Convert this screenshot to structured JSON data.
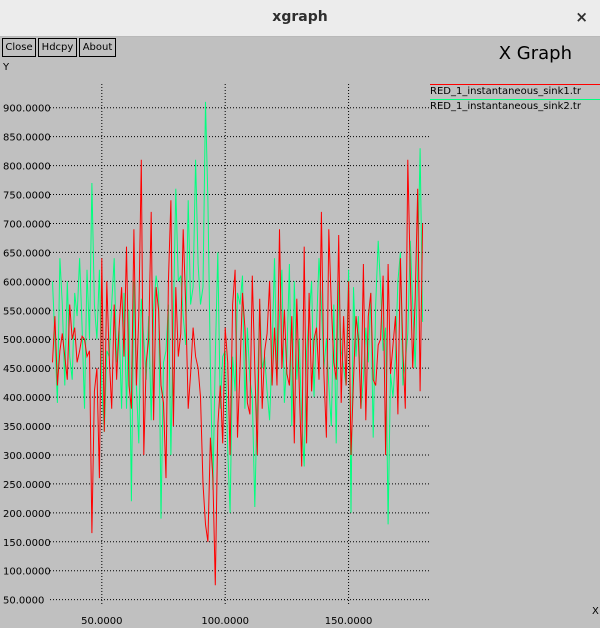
{
  "window": {
    "title": "xgraph",
    "close_icon": "×"
  },
  "toolbar": {
    "close_label": "Close",
    "hdcpy_label": "Hdcpy",
    "about_label": "About"
  },
  "graph_title": "X Graph",
  "colors": {
    "background": "#c0c0c0",
    "series1": "#ff0000",
    "series2": "#00ff7f",
    "grid": "#000000"
  },
  "chart_data": {
    "type": "line",
    "title": "X Graph",
    "xlabel": "X",
    "ylabel": "Y",
    "grid": true,
    "legend_position": "top-right",
    "xlim": [
      29,
      183
    ],
    "ylim": [
      39,
      941
    ],
    "x_ticks": [
      50,
      100,
      150
    ],
    "x_tick_labels": [
      "50.0000",
      "100.0000",
      "150.0000"
    ],
    "y_ticks": [
      50,
      100,
      150,
      200,
      250,
      300,
      350,
      400,
      450,
      500,
      550,
      600,
      650,
      700,
      750,
      800,
      850,
      900
    ],
    "y_tick_labels": [
      "50.0000",
      "100.0000",
      "150.0000",
      "200.0000",
      "250.0000",
      "300.0000",
      "350.0000",
      "400.0000",
      "450.0000",
      "500.0000",
      "550.0000",
      "600.0000",
      "650.0000",
      "700.0000",
      "750.0000",
      "800.0000",
      "850.0000",
      "900.0000"
    ],
    "series": [
      {
        "name": "RED_1_instantaneous_sink1.tr",
        "x": [
          30,
          31,
          32,
          33,
          34,
          35,
          36,
          37,
          38,
          39,
          40,
          41,
          42,
          43,
          44,
          45,
          46,
          47,
          48,
          49,
          50,
          51,
          52,
          53,
          54,
          55,
          56,
          57,
          58,
          59,
          60,
          61,
          62,
          63,
          64,
          65,
          66,
          67,
          68,
          69,
          70,
          71,
          72,
          73,
          74,
          75,
          76,
          77,
          78,
          79,
          80,
          81,
          82,
          83,
          84,
          85,
          86,
          87,
          88,
          89,
          90,
          91,
          92,
          93,
          94,
          95,
          96,
          97,
          98,
          99,
          100,
          101,
          102,
          103,
          104,
          105,
          106,
          107,
          108,
          109,
          110,
          111,
          112,
          113,
          114,
          115,
          116,
          117,
          118,
          119,
          120,
          121,
          122,
          123,
          124,
          125,
          126,
          127,
          128,
          129,
          130,
          131,
          132,
          133,
          134,
          135,
          136,
          137,
          138,
          139,
          140,
          141,
          142,
          143,
          144,
          145,
          146,
          147,
          148,
          149,
          150,
          151,
          152,
          153,
          154,
          155,
          156,
          157,
          158,
          159,
          160,
          161,
          162,
          163,
          164,
          165,
          166,
          167,
          168,
          169,
          170,
          171,
          172,
          173,
          174,
          175,
          176,
          177,
          178,
          179,
          180
        ],
        "y": [
          460,
          540,
          420,
          480,
          510,
          470,
          430,
          560,
          500,
          520,
          460,
          480,
          505,
          500,
          470,
          480,
          165,
          410,
          450,
          260,
          640,
          340,
          600,
          470,
          380,
          560,
          430,
          520,
          590,
          470,
          660,
          420,
          380,
          690,
          420,
          540,
          810,
          300,
          460,
          500,
          720,
          360,
          590,
          550,
          420,
          390,
          260,
          600,
          740,
          350,
          590,
          470,
          510,
          690,
          560,
          380,
          440,
          520,
          470,
          450,
          400,
          250,
          180,
          150,
          330,
          260,
          75,
          350,
          420,
          320,
          520,
          460,
          300,
          560,
          620,
          330,
          450,
          580,
          520,
          390,
          370,
          610,
          450,
          300,
          570,
          380,
          480,
          510,
          600,
          420,
          520,
          420,
          690,
          450,
          550,
          440,
          420,
          540,
          320,
          570,
          420,
          280,
          660,
          320,
          580,
          410,
          500,
          520,
          430,
          720,
          440,
          330,
          690,
          560,
          460,
          430,
          680,
          390,
          540,
          420,
          600,
          300,
          430,
          540,
          500,
          380,
          630,
          360,
          540,
          580,
          430,
          420,
          490,
          500,
          610,
          300,
          630,
          440,
          490,
          540,
          370,
          640,
          480,
          380,
          810,
          610,
          450,
          570,
          760,
          410,
          700
        ]
      },
      {
        "name": "RED_1_instantaneous_sink2.tr",
        "x": [
          30,
          31,
          32,
          33,
          34,
          35,
          36,
          37,
          38,
          39,
          40,
          41,
          42,
          43,
          44,
          45,
          46,
          47,
          48,
          49,
          50,
          51,
          52,
          53,
          54,
          55,
          56,
          57,
          58,
          59,
          60,
          61,
          62,
          63,
          64,
          65,
          66,
          67,
          68,
          69,
          70,
          71,
          72,
          73,
          74,
          75,
          76,
          77,
          78,
          79,
          80,
          81,
          82,
          83,
          84,
          85,
          86,
          87,
          88,
          89,
          90,
          91,
          92,
          93,
          94,
          95,
          96,
          97,
          98,
          99,
          100,
          101,
          102,
          103,
          104,
          105,
          106,
          107,
          108,
          109,
          110,
          111,
          112,
          113,
          114,
          115,
          116,
          117,
          118,
          119,
          120,
          121,
          122,
          123,
          124,
          125,
          126,
          127,
          128,
          129,
          130,
          131,
          132,
          133,
          134,
          135,
          136,
          137,
          138,
          139,
          140,
          141,
          142,
          143,
          144,
          145,
          146,
          147,
          148,
          149,
          150,
          151,
          152,
          153,
          154,
          155,
          156,
          157,
          158,
          159,
          160,
          161,
          162,
          163,
          164,
          165,
          166,
          167,
          168,
          169,
          170,
          171,
          172,
          173,
          174,
          175,
          176,
          177,
          178,
          179,
          180
        ],
        "y": [
          600,
          500,
          390,
          640,
          560,
          420,
          600,
          470,
          430,
          580,
          540,
          640,
          520,
          380,
          620,
          500,
          770,
          560,
          500,
          620,
          420,
          340,
          480,
          470,
          560,
          640,
          460,
          520,
          380,
          580,
          380,
          550,
          220,
          600,
          420,
          320,
          570,
          500,
          430,
          540,
          360,
          550,
          610,
          580,
          190,
          460,
          480,
          560,
          300,
          540,
          760,
          600,
          610,
          540,
          490,
          740,
          560,
          590,
          810,
          630,
          560,
          590,
          910,
          740,
          450,
          240,
          470,
          650,
          380,
          470,
          480,
          310,
          200,
          470,
          410,
          580,
          560,
          610,
          380,
          520,
          430,
          400,
          210,
          400,
          560,
          450,
          470,
          410,
          360,
          480,
          640,
          430,
          540,
          620,
          390,
          470,
          630,
          350,
          600,
          430,
          500,
          360,
          280,
          480,
          540,
          600,
          400,
          520,
          640,
          560,
          450,
          500,
          420,
          350,
          560,
          320,
          600,
          480,
          450,
          420,
          620,
          200,
          590,
          470,
          540,
          380,
          430,
          520,
          460,
          580,
          330,
          560,
          670,
          590,
          480,
          520,
          180,
          440,
          400,
          470,
          600,
          650,
          420,
          460,
          510,
          670,
          560,
          450,
          620,
          830,
          530
        ]
      }
    ]
  }
}
